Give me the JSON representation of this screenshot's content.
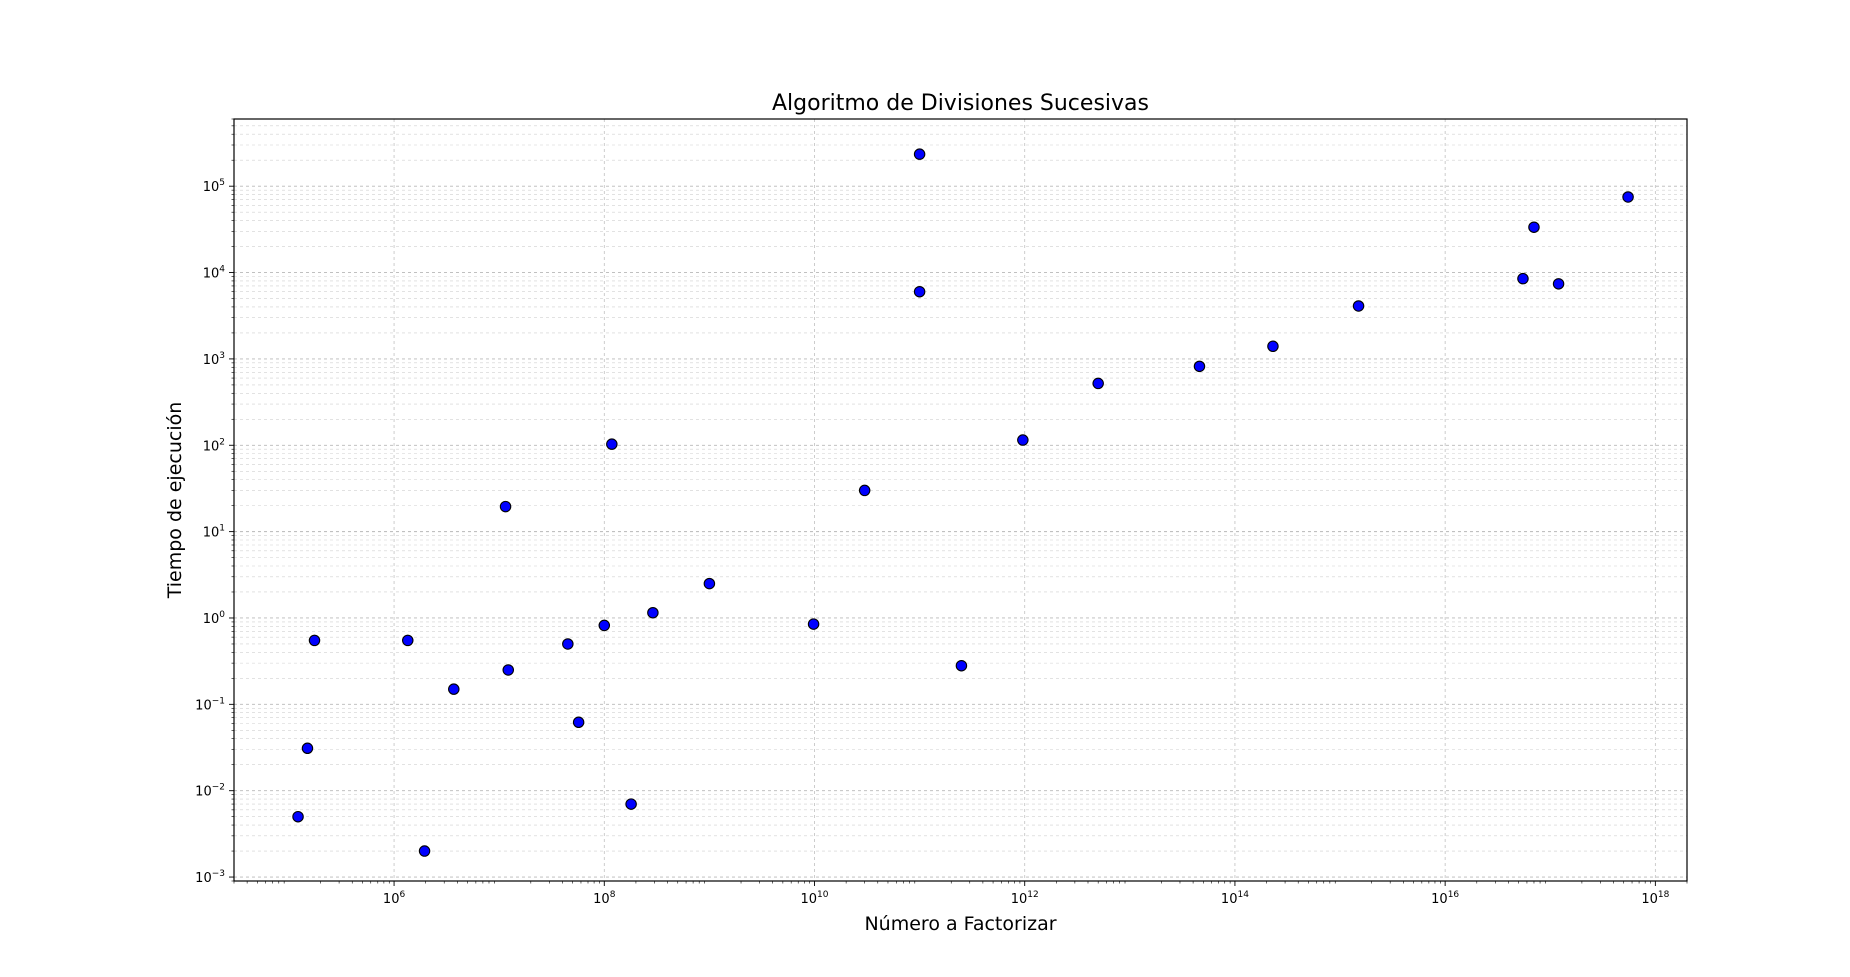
{
  "chart_data": {
    "type": "scatter",
    "title": "Algoritmo de Divisiones Sucesivas",
    "xlabel": "Número a Factorizar",
    "ylabel": "Tiempo de ejecución",
    "xscale": "log",
    "yscale": "log",
    "xlim": [
      30000,
      2000000000000000000
    ],
    "ylim": [
      0.0009,
      600000
    ],
    "grid": "major and minor, dashed",
    "x_ticks": [
      {
        "value": 1000000,
        "base": "10",
        "exp": "6"
      },
      {
        "value": 100000000,
        "base": "10",
        "exp": "8"
      },
      {
        "value": 10000000000,
        "base": "10",
        "exp": "10"
      },
      {
        "value": 1000000000000,
        "base": "10",
        "exp": "12"
      },
      {
        "value": 100000000000000,
        "base": "10",
        "exp": "14"
      },
      {
        "value": 10000000000000000,
        "base": "10",
        "exp": "16"
      },
      {
        "value": 1000000000000000000,
        "base": "10",
        "exp": "18"
      }
    ],
    "y_ticks": [
      {
        "value": 0.001,
        "base": "10",
        "exp": "−3"
      },
      {
        "value": 0.01,
        "base": "10",
        "exp": "−2"
      },
      {
        "value": 0.1,
        "base": "10",
        "exp": "−1"
      },
      {
        "value": 1,
        "base": "10",
        "exp": "0"
      },
      {
        "value": 10,
        "base": "10",
        "exp": "1"
      },
      {
        "value": 100,
        "base": "10",
        "exp": "2"
      },
      {
        "value": 1000,
        "base": "10",
        "exp": "3"
      },
      {
        "value": 10000,
        "base": "10",
        "exp": "4"
      },
      {
        "value": 100000,
        "base": "10",
        "exp": "5"
      }
    ],
    "marker_color": "#0000ff",
    "marker_edge": "#000000",
    "points": [
      {
        "x": 122000,
        "y": 0.005
      },
      {
        "x": 150000,
        "y": 0.031
      },
      {
        "x": 175000,
        "y": 0.55
      },
      {
        "x": 1350000,
        "y": 0.55
      },
      {
        "x": 1950000,
        "y": 0.002
      },
      {
        "x": 3700000,
        "y": 0.15
      },
      {
        "x": 11500000,
        "y": 19.5
      },
      {
        "x": 12200000,
        "y": 0.25
      },
      {
        "x": 45000000,
        "y": 0.5
      },
      {
        "x": 57000000,
        "y": 0.062
      },
      {
        "x": 100000000,
        "y": 0.82
      },
      {
        "x": 118000000,
        "y": 103
      },
      {
        "x": 180000000,
        "y": 0.007
      },
      {
        "x": 290000000,
        "y": 1.15
      },
      {
        "x": 1000000000,
        "y": 2.5
      },
      {
        "x": 9800000000,
        "y": 0.85
      },
      {
        "x": 30000000000,
        "y": 30
      },
      {
        "x": 100000000000,
        "y": 6000
      },
      {
        "x": 100000000000,
        "y": 235000
      },
      {
        "x": 250000000000,
        "y": 0.28
      },
      {
        "x": 960000000000,
        "y": 115
      },
      {
        "x": 5000000000000,
        "y": 520
      },
      {
        "x": 46000000000000,
        "y": 820
      },
      {
        "x": 230000000000000,
        "y": 1400
      },
      {
        "x": 1500000000000000,
        "y": 4100
      },
      {
        "x": 55000000000000000,
        "y": 8500
      },
      {
        "x": 70000000000000000,
        "y": 33500
      },
      {
        "x": 120000000000000000,
        "y": 7400
      },
      {
        "x": 550000000000000000,
        "y": 75000
      }
    ]
  }
}
